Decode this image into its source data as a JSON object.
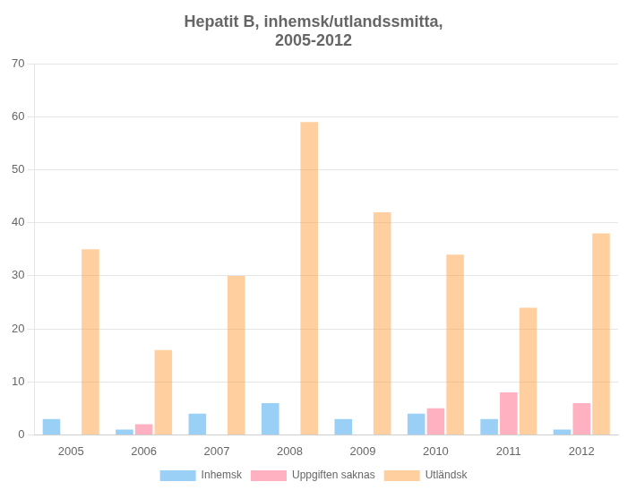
{
  "chart_data": {
    "type": "bar",
    "title": "Hepatit B, inhemsk/utlandssmitta,\n2005-2012",
    "categories": [
      "2005",
      "2006",
      "2007",
      "2008",
      "2009",
      "2010",
      "2011",
      "2012"
    ],
    "series": [
      {
        "name": "Inhemsk",
        "values": [
          3,
          1,
          4,
          6,
          3,
          4,
          3,
          1
        ]
      },
      {
        "name": "Uppgiften saknas",
        "values": [
          0,
          2,
          0,
          0,
          0,
          5,
          8,
          6
        ]
      },
      {
        "name": "Utländsk",
        "values": [
          35,
          16,
          30,
          59,
          42,
          34,
          24,
          38
        ]
      }
    ],
    "ylim": [
      0,
      70
    ],
    "yticks": [
      0,
      10,
      20,
      30,
      40,
      50,
      60,
      70
    ],
    "grid": true,
    "legend": "bottom"
  }
}
